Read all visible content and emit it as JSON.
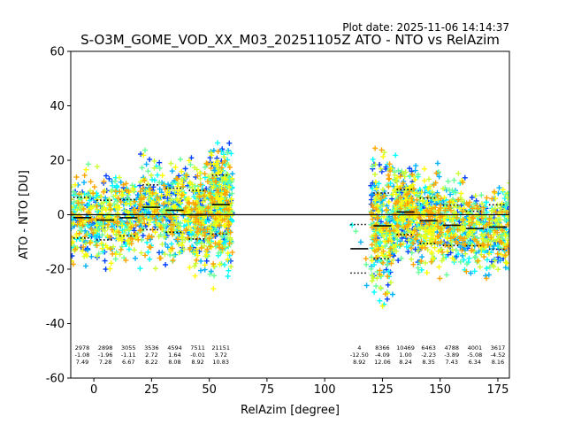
{
  "plot_date": "Plot date: 2025-11-06 14:14:37",
  "chart_data": {
    "type": "scatter",
    "title": "S-O3M_GOME_VOD_XX_M03_20251105Z ATO - NTO vs RelAzim",
    "xlabel": "RelAzim [degree]",
    "ylabel": "ATO - NTO [DU]",
    "xlim": [
      -10,
      180
    ],
    "ylim": [
      -60,
      60
    ],
    "xticks": [
      0,
      25,
      50,
      75,
      100,
      125,
      150,
      175
    ],
    "yticks": [
      -60,
      -40,
      -20,
      0,
      20,
      40,
      60
    ],
    "grid": false,
    "marker": "+",
    "point_colors": [
      "#0040ff",
      "#00b0ff",
      "#00ffff",
      "#66ff99",
      "#ccff33",
      "#ffff00",
      "#ffa500"
    ],
    "zero_line": 0,
    "bins": [
      {
        "center": 0,
        "count": "2978",
        "mean": "-1.08",
        "std": "7.49",
        "x_start": -10,
        "x_end": 0
      },
      {
        "center": 10,
        "count": "2898",
        "mean": "-1.96",
        "std": "7.28",
        "x_start": 0,
        "x_end": 10
      },
      {
        "center": 20,
        "count": "3055",
        "mean": "-1.11",
        "std": "6.67",
        "x_start": 10,
        "x_end": 20
      },
      {
        "center": 30,
        "count": "3536",
        "mean": "2.72",
        "std": "8.22",
        "x_start": 20,
        "x_end": 30
      },
      {
        "center": 40,
        "count": "4594",
        "mean": "1.64",
        "std": "8.08",
        "x_start": 30,
        "x_end": 40
      },
      {
        "center": 50,
        "count": "7511",
        "mean": "-0.01",
        "std": "8.92",
        "x_start": 40,
        "x_end": 50
      },
      {
        "center": 60,
        "count": "21151",
        "mean": "3.72",
        "std": "10.83",
        "x_start": 50,
        "x_end": 60
      },
      {
        "center": 120,
        "count": "4",
        "mean": "-12.50",
        "std": "8.92",
        "x_start": 110,
        "x_end": 120
      },
      {
        "center": 130,
        "count": "8366",
        "mean": "-4.09",
        "std": "12.06",
        "x_start": 120,
        "x_end": 130
      },
      {
        "center": 140,
        "count": "10469",
        "mean": "1.00",
        "std": "8.24",
        "x_start": 130,
        "x_end": 140
      },
      {
        "center": 150,
        "count": "6463",
        "mean": "-2.23",
        "std": "8.35",
        "x_start": 140,
        "x_end": 150
      },
      {
        "center": 160,
        "count": "4788",
        "mean": "-3.89",
        "std": "7.43",
        "x_start": 150,
        "x_end": 160
      },
      {
        "center": 170,
        "count": "4001",
        "mean": "-5.08",
        "std": "6.34",
        "x_start": 160,
        "x_end": 170
      },
      {
        "center": 180,
        "count": "3617",
        "mean": "-4.52",
        "std": "8.16",
        "x_start": 170,
        "x_end": 180
      }
    ]
  }
}
